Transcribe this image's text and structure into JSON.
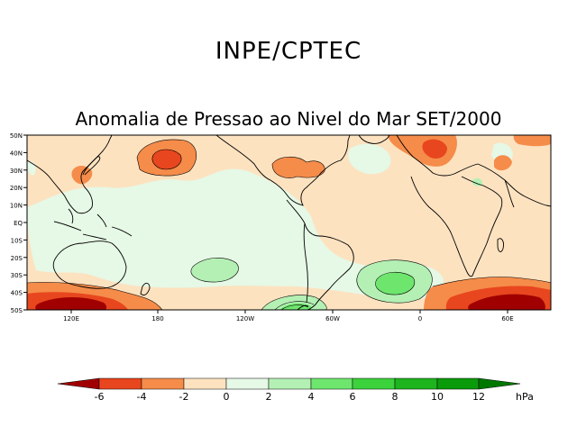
{
  "header": {
    "organization": "INPE/CPTEC"
  },
  "map": {
    "title": "Anomalia de Pressao ao Nivel do Mar SET/2000",
    "lat_labels": [
      "50N",
      "40N",
      "30N",
      "20N",
      "10N",
      "EQ",
      "10S",
      "20S",
      "30S",
      "40S",
      "50S"
    ],
    "lon_labels": [
      "120E",
      "180",
      "120W",
      "60W",
      "0",
      "60E"
    ]
  },
  "colorbar": {
    "unit": "hPa",
    "tick_labels": [
      "-6",
      "-4",
      "-2",
      "0",
      "2",
      "4",
      "6",
      "8",
      "10",
      "12"
    ],
    "colors": {
      "lt_-6": "#a00000",
      "-6_-4": "#e8461e",
      "-4_-2": "#f58c4a",
      "-2_0": "#fde2c0",
      "0_2": "#e6f8e6",
      "2_4": "#b4f0b4",
      "4_6": "#6ee66e",
      "6_8": "#3cd23c",
      "8_10": "#1eb41e",
      "10_12": "#0a9b0a",
      "gt_12": "#007800"
    }
  }
}
